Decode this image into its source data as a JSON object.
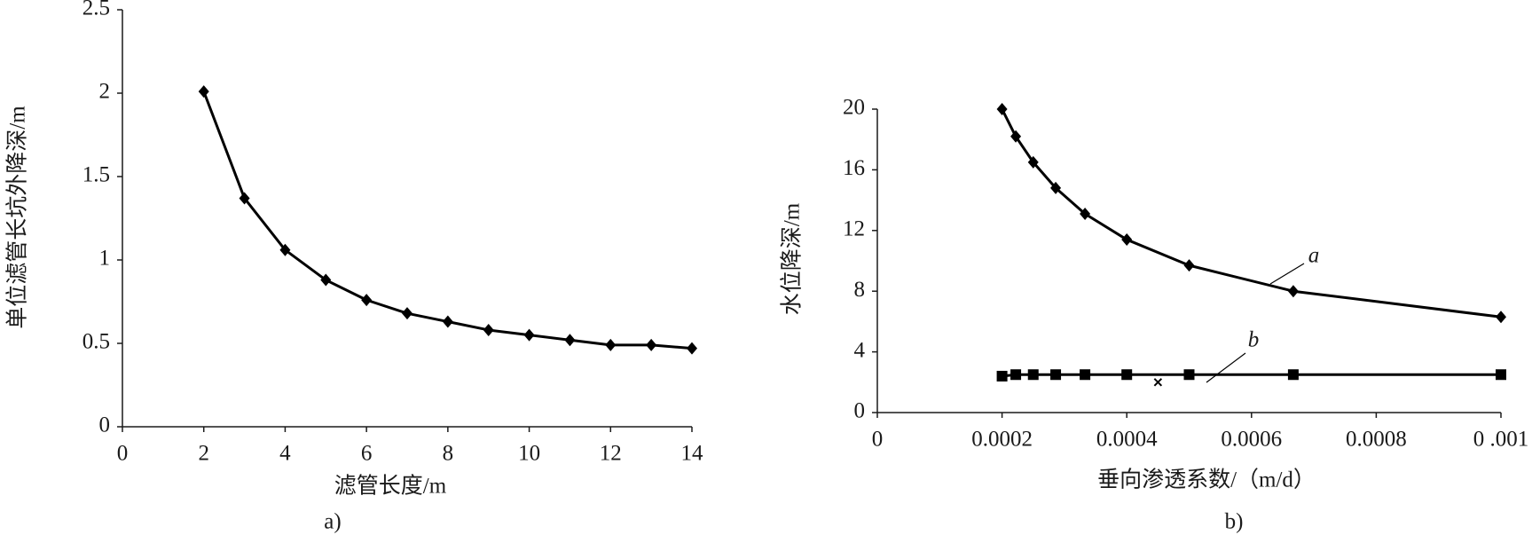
{
  "chart_data": [
    {
      "type": "line",
      "caption": "a)",
      "xlabel": "滤管长度/m",
      "ylabel": "单位滤管长坑外降深/m",
      "x": [
        2,
        3,
        4,
        5,
        6,
        7,
        8,
        9,
        10,
        11,
        12,
        13,
        14
      ],
      "series": [
        {
          "name": null,
          "color": "#000000",
          "marker": "diamond",
          "values": [
            2.01,
            1.37,
            1.06,
            0.88,
            0.76,
            0.68,
            0.63,
            0.58,
            0.55,
            0.52,
            0.49,
            0.49,
            0.47
          ]
        }
      ],
      "xlim": [
        0,
        14
      ],
      "xticks": [
        0,
        2,
        4,
        6,
        8,
        10,
        12,
        14
      ],
      "ylim": [
        0,
        2.5
      ],
      "yticks": [
        0,
        0.5,
        1,
        1.5,
        2,
        2.5
      ]
    },
    {
      "type": "line",
      "caption": "b)",
      "xlabel": "垂向渗透系数/（m/d）",
      "ylabel": "水位降深/m",
      "x": [
        0.0002,
        0.000222,
        0.00025,
        0.000286,
        0.000333,
        0.0004,
        0.0005,
        0.000667,
        0.001
      ],
      "series": [
        {
          "name": "a",
          "color": "#000000",
          "marker": "diamond",
          "values": [
            20,
            18.2,
            16.5,
            14.8,
            13.1,
            11.4,
            9.7,
            8.0,
            6.3
          ]
        },
        {
          "name": "b",
          "color": "#000000",
          "marker": "square",
          "values": [
            2.4,
            2.5,
            2.5,
            2.5,
            2.5,
            2.5,
            2.5,
            2.5,
            2.5
          ]
        }
      ],
      "points": {
        "marker": "x",
        "x": [
          0.00045
        ],
        "values": [
          2.0
        ]
      },
      "xlim": [
        0,
        0.001
      ],
      "xticks": [
        0,
        {
          "value": 0.0002,
          "label": "0.0002"
        },
        {
          "value": 0.0004,
          "label": "0.0004"
        },
        {
          "value": 0.0006,
          "label": "0.0006"
        },
        {
          "value": 0.0008,
          "label": "0.0008"
        },
        {
          "value": 0.001,
          "label": "0 .001"
        }
      ],
      "ylim": [
        0,
        20
      ],
      "yticks": [
        0,
        4,
        8,
        12,
        16,
        20
      ]
    }
  ]
}
